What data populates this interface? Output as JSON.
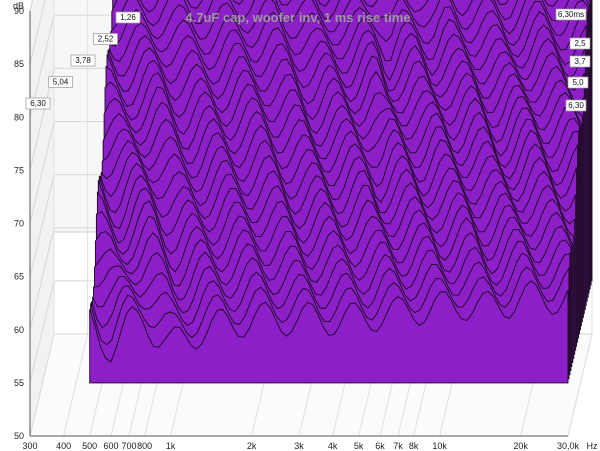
{
  "chart_data": {
    "type": "area",
    "title": "4.7uF cap, woofer inv, 1 ms rise time",
    "ylabel": "dB",
    "xunit": "Hz",
    "x_scale": "log",
    "xlim": [
      300,
      30000
    ],
    "ylim": [
      50,
      90
    ],
    "x_ticks": [
      "300",
      "400",
      "500",
      "600",
      "700",
      "800",
      "1k",
      "2k",
      "3k",
      "4k",
      "5k",
      "6k",
      "7k",
      "8k",
      "10k",
      "20k",
      "30,0k"
    ],
    "y_ticks": [
      "50",
      "55",
      "60",
      "65",
      "70",
      "75",
      "80",
      "85",
      "90"
    ],
    "time_unit": "ms",
    "time_ticks_left": [
      "6,30",
      "5,04",
      "3,78",
      "2,52",
      "1,26"
    ],
    "time_ticks_right": [
      "6,30ms",
      "2,5",
      "3,7",
      "5,0",
      "6,30"
    ],
    "slice_count": 26,
    "fill_color": "#8c1fc8",
    "edge_color": "#1a0a1e",
    "front_slice_db": [
      {
        "f": 500,
        "db": 60.5
      },
      {
        "f": 550,
        "db": 59
      },
      {
        "f": 600,
        "db": 58.5
      },
      {
        "f": 650,
        "db": 59.5
      },
      {
        "f": 700,
        "db": 60.5
      },
      {
        "f": 800,
        "db": 61
      },
      {
        "f": 900,
        "db": 59.5
      },
      {
        "f": 1000,
        "db": 58.5
      },
      {
        "f": 1100,
        "db": 59
      },
      {
        "f": 1300,
        "db": 60
      },
      {
        "f": 1600,
        "db": 60.5
      },
      {
        "f": 2000,
        "db": 61
      },
      {
        "f": 2500,
        "db": 61
      },
      {
        "f": 3000,
        "db": 61
      },
      {
        "f": 4000,
        "db": 61
      },
      {
        "f": 5000,
        "db": 61
      },
      {
        "f": 6000,
        "db": 61.5
      },
      {
        "f": 7000,
        "db": 61.5
      },
      {
        "f": 8000,
        "db": 62
      },
      {
        "f": 10000,
        "db": 62
      },
      {
        "f": 12000,
        "db": 62.5
      },
      {
        "f": 15000,
        "db": 62
      },
      {
        "f": 20000,
        "db": 63
      },
      {
        "f": 25000,
        "db": 63
      },
      {
        "f": 30000,
        "db": 63
      }
    ],
    "back_slice_db": [
      {
        "f": 500,
        "db": 84
      },
      {
        "f": 600,
        "db": 84.5
      },
      {
        "f": 700,
        "db": 84.5
      },
      {
        "f": 800,
        "db": 85
      },
      {
        "f": 1000,
        "db": 85
      },
      {
        "f": 1300,
        "db": 85
      },
      {
        "f": 1600,
        "db": 85.5
      },
      {
        "f": 2000,
        "db": 85.5
      },
      {
        "f": 2500,
        "db": 84.5
      },
      {
        "f": 3000,
        "db": 83.5
      },
      {
        "f": 3500,
        "db": 84
      },
      {
        "f": 4000,
        "db": 84
      },
      {
        "f": 5000,
        "db": 85.5
      },
      {
        "f": 5500,
        "db": 83
      },
      {
        "f": 6000,
        "db": 84
      },
      {
        "f": 7000,
        "db": 84.5
      },
      {
        "f": 8000,
        "db": 83.5
      },
      {
        "f": 9000,
        "db": 84.5
      },
      {
        "f": 10000,
        "db": 84
      },
      {
        "f": 12000,
        "db": 84
      },
      {
        "f": 15000,
        "db": 83.5
      },
      {
        "f": 20000,
        "db": 85
      },
      {
        "f": 25000,
        "db": 84.5
      },
      {
        "f": 30000,
        "db": 85
      }
    ]
  }
}
